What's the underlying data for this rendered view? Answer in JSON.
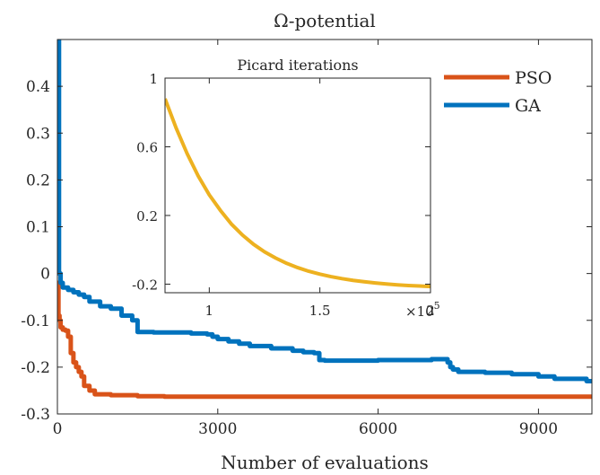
{
  "chart_data": [
    {
      "type": "line",
      "title": "Ω-potential",
      "xlabel": "Number of evaluations",
      "ylabel": "",
      "xlim": [
        0,
        10000
      ],
      "ylim": [
        -0.3,
        0.5
      ],
      "xticks": [
        0,
        3000,
        6000,
        9000
      ],
      "xtick_labels": [
        "0",
        "3000",
        "6000",
        "9000"
      ],
      "yticks": [
        0.4,
        0.3,
        0.2,
        0.1,
        0,
        -0.1,
        -0.2,
        -0.3
      ],
      "ytick_labels": [
        "0.4",
        "0.3",
        "0.2",
        "0.1",
        "0",
        "-0.1",
        "-0.2",
        "-0.3"
      ],
      "grid": false,
      "legend": "top-right",
      "series": [
        {
          "name": "PSO",
          "color": "#d95319",
          "step": true,
          "x": [
            0,
            20,
            40,
            60,
            100,
            150,
            200,
            250,
            300,
            350,
            400,
            450,
            500,
            600,
            700,
            1000,
            1500,
            2000,
            10000
          ],
          "y": [
            -0.02,
            -0.09,
            -0.1,
            -0.115,
            -0.12,
            -0.122,
            -0.135,
            -0.17,
            -0.19,
            -0.2,
            -0.21,
            -0.22,
            -0.24,
            -0.25,
            -0.258,
            -0.26,
            -0.262,
            -0.263,
            -0.264
          ]
        },
        {
          "name": "GA",
          "color": "#0072bd",
          "step": true,
          "x": [
            0,
            30,
            60,
            100,
            200,
            300,
            400,
            500,
            600,
            800,
            1000,
            1200,
            1400,
            1500,
            1800,
            2500,
            2800,
            2900,
            3000,
            3200,
            3400,
            3600,
            4000,
            4400,
            4600,
            4800,
            4900,
            5000,
            6000,
            7000,
            7300,
            7350,
            7400,
            7500,
            8000,
            8500,
            9000,
            9300,
            9500,
            9900,
            10000
          ],
          "y": [
            0.5,
            0.0,
            -0.02,
            -0.03,
            -0.035,
            -0.04,
            -0.045,
            -0.05,
            -0.06,
            -0.07,
            -0.075,
            -0.09,
            -0.1,
            -0.125,
            -0.126,
            -0.128,
            -0.13,
            -0.135,
            -0.14,
            -0.145,
            -0.15,
            -0.155,
            -0.16,
            -0.165,
            -0.168,
            -0.17,
            -0.185,
            -0.186,
            -0.185,
            -0.183,
            -0.19,
            -0.2,
            -0.205,
            -0.21,
            -0.212,
            -0.215,
            -0.22,
            -0.225,
            -0.225,
            -0.23,
            -0.23
          ]
        }
      ]
    },
    {
      "type": "line",
      "title": "Picard iterations",
      "xlim": [
        80000,
        200000
      ],
      "ylim": [
        -0.25,
        1
      ],
      "xticks": [
        100000,
        150000,
        200000
      ],
      "xtick_labels": [
        "1",
        "1.5",
        "2"
      ],
      "x_exponent_label": "×10",
      "x_exponent": "5",
      "yticks": [
        1,
        0.6,
        0.2,
        -0.2
      ],
      "ytick_labels": [
        "1",
        "0.6",
        "0.2",
        "-0.2"
      ],
      "series": [
        {
          "color": "#edb120",
          "x": [
            80000,
            85000,
            90000,
            95000,
            100000,
            105000,
            110000,
            115000,
            120000,
            125000,
            130000,
            135000,
            140000,
            145000,
            150000,
            155000,
            160000,
            165000,
            170000,
            175000,
            180000,
            185000,
            190000,
            195000,
            200000
          ],
          "y": [
            0.88,
            0.71,
            0.56,
            0.43,
            0.32,
            0.23,
            0.15,
            0.086,
            0.032,
            -0.012,
            -0.048,
            -0.079,
            -0.104,
            -0.125,
            -0.142,
            -0.156,
            -0.168,
            -0.178,
            -0.186,
            -0.193,
            -0.199,
            -0.204,
            -0.208,
            -0.211,
            -0.214
          ]
        }
      ]
    }
  ]
}
